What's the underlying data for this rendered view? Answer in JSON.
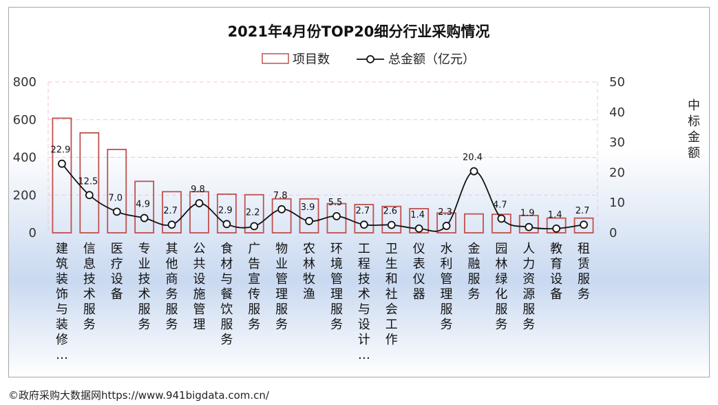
{
  "chart_data": {
    "type": "bar",
    "title": "2021年4月份TOP20细分行业采购情况",
    "legend": {
      "placement": "top",
      "bar_label": "项目数",
      "line_label": "总金额（亿元）"
    },
    "y_left": {
      "ylim": [
        0,
        800
      ],
      "ticks": [
        "0",
        "200",
        "400",
        "600",
        "800"
      ]
    },
    "y_right": {
      "ylim": [
        0,
        50
      ],
      "ticks": [
        "0",
        "10",
        "20",
        "30",
        "40",
        "50"
      ],
      "label": "中标金额"
    },
    "grid": true,
    "categories": [
      {
        "lines": [
          "建",
          "筑",
          "装",
          "饰",
          "与",
          "装",
          "修",
          "…"
        ]
      },
      {
        "lines": [
          "信",
          "息",
          "技",
          "术",
          "服",
          "务"
        ]
      },
      {
        "lines": [
          "医",
          "疗",
          "设",
          "备"
        ]
      },
      {
        "lines": [
          "专",
          "业",
          "技",
          "术",
          "服",
          "务"
        ]
      },
      {
        "lines": [
          "其",
          "他",
          "商",
          "务",
          "服",
          "务"
        ]
      },
      {
        "lines": [
          "公",
          "共",
          "设",
          "施",
          "管",
          "理"
        ]
      },
      {
        "lines": [
          "食",
          "材",
          "与",
          "餐",
          "饮",
          "服",
          "务"
        ]
      },
      {
        "lines": [
          "广",
          "告",
          "宣",
          "传",
          "服",
          "务"
        ]
      },
      {
        "lines": [
          "物",
          "业",
          "管",
          "理",
          "服",
          "务"
        ]
      },
      {
        "lines": [
          "农",
          "林",
          "牧",
          "渔"
        ]
      },
      {
        "lines": [
          "环",
          "境",
          "管",
          "理",
          "服",
          "务"
        ]
      },
      {
        "lines": [
          "工",
          "程",
          "技",
          "术",
          "与",
          "设",
          "计",
          "…"
        ]
      },
      {
        "lines": [
          "卫",
          "生",
          "和",
          "社",
          "会",
          "工",
          "作"
        ]
      },
      {
        "lines": [
          "仪",
          "表",
          "仪",
          "器"
        ]
      },
      {
        "lines": [
          "水",
          "利",
          "管",
          "理",
          "服",
          "务"
        ]
      },
      {
        "lines": [
          "金",
          "融",
          "服",
          "务"
        ]
      },
      {
        "lines": [
          "园",
          "林",
          "绿",
          "化",
          "服",
          "务"
        ]
      },
      {
        "lines": [
          "人",
          "力",
          "资",
          "源",
          "服",
          "务"
        ]
      },
      {
        "lines": [
          "教",
          "育",
          "设",
          "备"
        ]
      },
      {
        "lines": [
          "租",
          "赁",
          "服",
          "务"
        ]
      }
    ],
    "series": [
      {
        "name": "项目数",
        "type": "bar",
        "axis": "left",
        "color": "#c0504d",
        "values": [
          608,
          530,
          442,
          273,
          218,
          218,
          205,
          202,
          180,
          180,
          155,
          150,
          140,
          128,
          105,
          100,
          98,
          92,
          78,
          78
        ]
      },
      {
        "name": "总金额（亿元）",
        "type": "line",
        "axis": "right",
        "color": "#111111",
        "values": [
          22.9,
          12.5,
          7.0,
          4.9,
          2.7,
          9.8,
          2.9,
          2.2,
          7.8,
          3.9,
          5.5,
          2.7,
          2.6,
          1.4,
          2.3,
          20.4,
          4.7,
          1.9,
          1.4,
          2.7
        ],
        "labels": [
          "22.9",
          "12.5",
          "7.0",
          "4.9",
          "2.7",
          "9.8",
          "2.9",
          "2.2",
          "7.8",
          "3.9",
          "5.5",
          "2.7",
          "2.6",
          "1.4",
          "2.3",
          "20.4",
          "4.7",
          "1.9",
          "1.4",
          "2.7"
        ]
      }
    ]
  },
  "footer": {
    "text": "©政府采购大数据网https://www.941bigdata.com.cn/"
  },
  "colors": {
    "bar_stroke": "#c0504d",
    "grid": "#f4c6cf",
    "gradient_top": "#ffffff",
    "gradient_bottom": "#c9d9f0"
  }
}
